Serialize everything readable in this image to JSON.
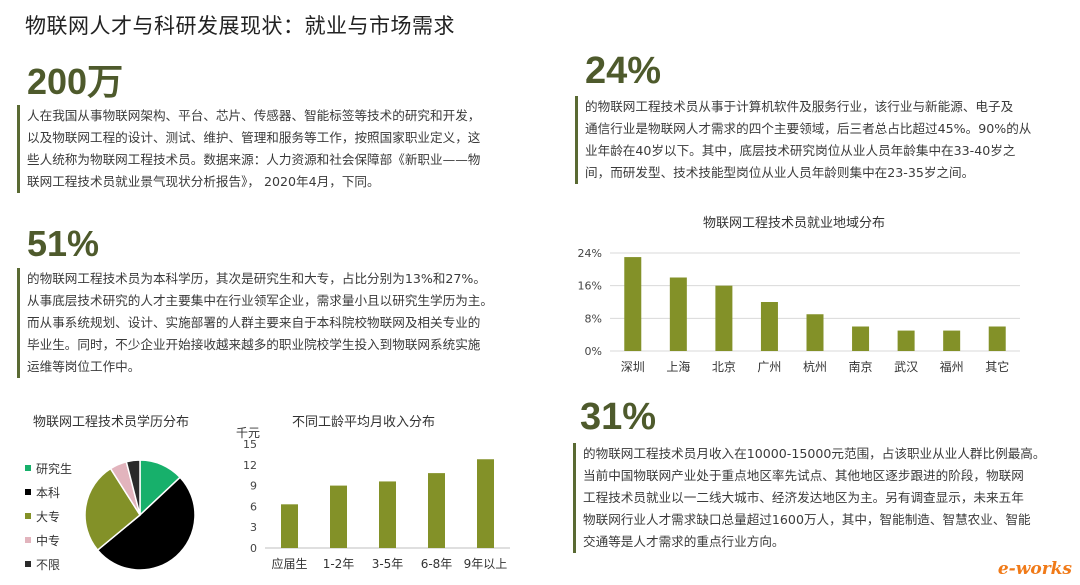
{
  "title": "物联网人才与科研发展现状：就业与市场需求",
  "stats": [
    {
      "value": "200万",
      "lines": [
        "人在我国从事物联网架构、平台、芯片、传感器、智能标签等技术的研究和开发，",
        "以及物联网工程的设计、测试、维护、管理和服务等工作，按照国家职业定义，这",
        "些人统称为物联网工程技术员。数据来源：人力资源和社会保障部《新职业——物",
        "联网工程技术员就业景气现状分析报告》， 2020年4月，下同。"
      ]
    },
    {
      "value": "51%",
      "lines": [
        "的物联网工程技术员为本科学历，其次是研究生和大专，占比分别为13%和27%。",
        "从事底层技术研究的人才主要集中在行业领军企业，需求量小且以研究生学历为主。",
        "而从事系统规划、设计、实施部署的人群主要来自于本科院校物联网及相关专业的",
        "毕业生。同时，不少企业开始接收越来越多的职业院校学生投入到物联网系统实施",
        "运维等岗位工作中。"
      ]
    },
    {
      "value": "24%",
      "lines": [
        "的物联网工程技术员从事于计算机软件及服务行业，该行业与新能源、电子及",
        "通信行业是物联网人才需求的四个主要领域，后三者总占比超过45%。90%的从",
        "业年龄在40岁以下。其中，底层技术研究岗位从业人员年龄集中在33-40岁之",
        "间，而研发型、技术技能型岗位从业人员年龄则集中在23-35岁之间。"
      ]
    },
    {
      "value": "31%",
      "lines": [
        "的物联网工程技术员月收入在10000-15000元范围，占该职业从业人群比例最高。",
        "当前中国物联网产业处于重点地区率先试点、其他地区逐步跟进的阶段，物联网",
        "工程技术员就业以一二线大城市、经济发达地区为主。另有调查显示，未来五年",
        "物联网行业人才需求缺口总量超过1600万人，其中，智能制造、智慧农业、智能",
        "交通等是人才需求的重点行业方向。"
      ]
    }
  ],
  "colors": {
    "accent": "#4e5a2c",
    "bar": "#839128",
    "grid": "#d9d9d9"
  },
  "logo": {
    "text": "e-works"
  },
  "chart_data": [
    {
      "type": "pie",
      "title": "物联网工程技术员学历分布",
      "categories": [
        "研究生",
        "本科",
        "大专",
        "中专",
        "不限"
      ],
      "values": [
        13,
        51,
        27,
        5,
        4
      ],
      "colors": [
        "#17b06b",
        "#000000",
        "#839128",
        "#e2b4bd",
        "#2a2a2a"
      ],
      "legend": "left"
    },
    {
      "type": "bar",
      "title": "不同工龄平均月收入分布",
      "ylabel": "千元",
      "categories": [
        "应届生",
        "1-2年",
        "3-5年",
        "6-8年",
        "9年以上"
      ],
      "values": [
        6.3,
        9.0,
        9.6,
        10.8,
        12.8
      ],
      "ylim": [
        0,
        15
      ],
      "yticks": [
        "0",
        "3",
        "6",
        "9",
        "12",
        "15"
      ],
      "grid": false
    },
    {
      "type": "bar",
      "title": "物联网工程技术员就业地域分布",
      "categories": [
        "深圳",
        "上海",
        "北京",
        "广州",
        "杭州",
        "南京",
        "武汉",
        "福州",
        "其它"
      ],
      "values": [
        23,
        18,
        16,
        12,
        9,
        6,
        5,
        5,
        6
      ],
      "ylim": [
        0,
        24
      ],
      "yticks": [
        "0%",
        "8%",
        "16%",
        "24%"
      ],
      "grid": true
    }
  ]
}
